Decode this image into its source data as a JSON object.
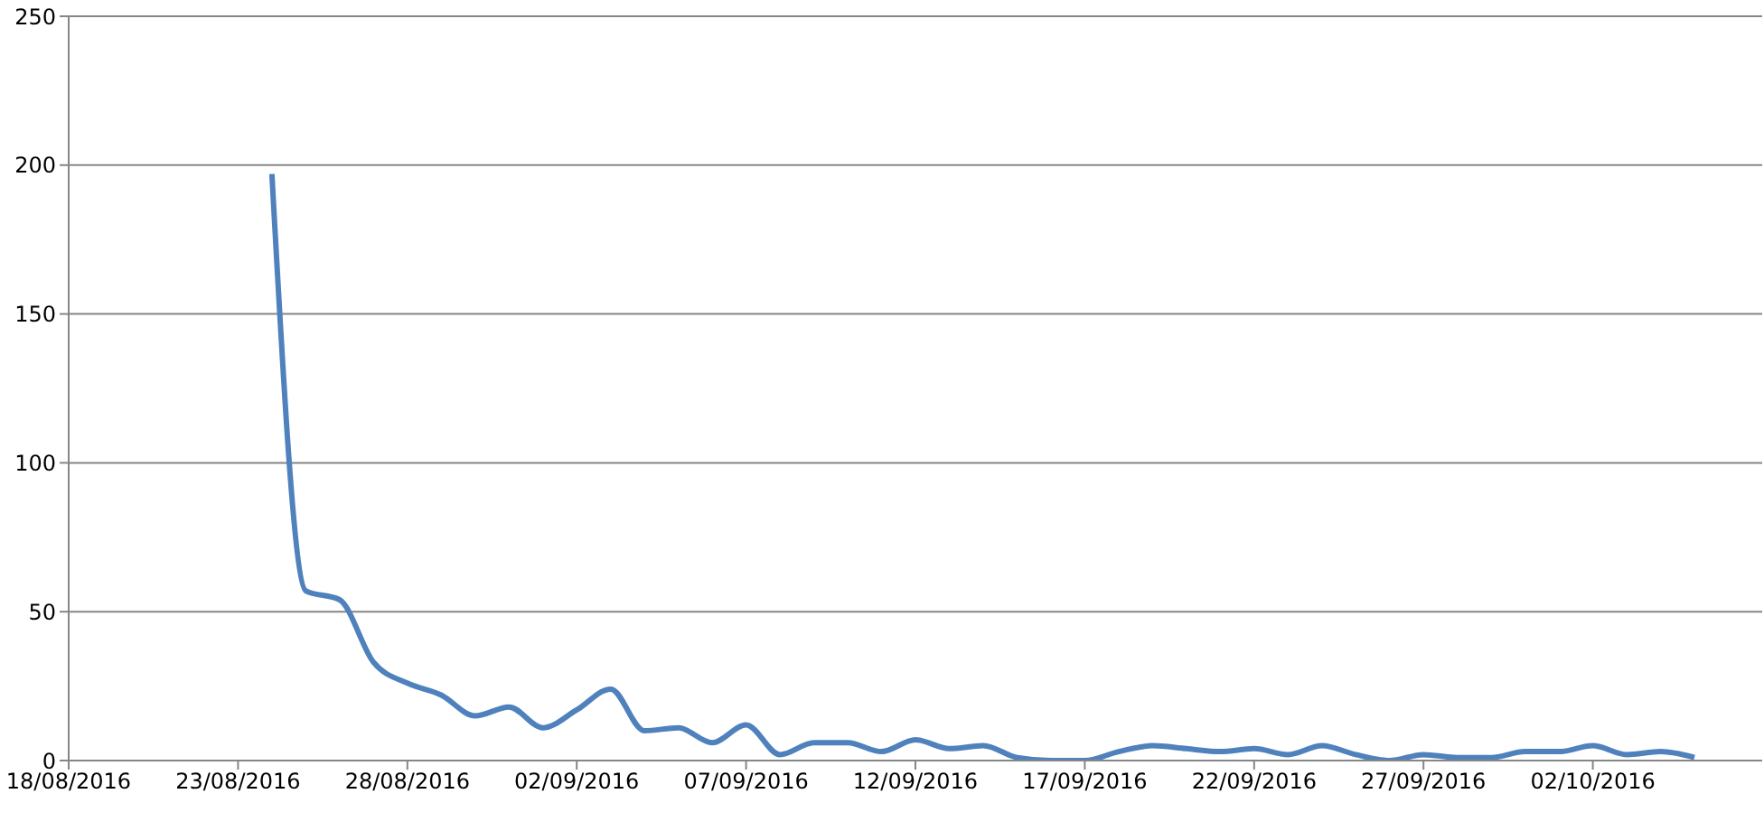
{
  "chart_data": {
    "type": "line",
    "x": [
      "2016-08-24",
      "2016-08-25",
      "2016-08-26",
      "2016-08-27",
      "2016-08-28",
      "2016-08-29",
      "2016-08-30",
      "2016-08-31",
      "2016-09-01",
      "2016-09-02",
      "2016-09-03",
      "2016-09-04",
      "2016-09-05",
      "2016-09-06",
      "2016-09-07",
      "2016-09-08",
      "2016-09-09",
      "2016-09-10",
      "2016-09-11",
      "2016-09-12",
      "2016-09-13",
      "2016-09-14",
      "2016-09-15",
      "2016-09-16",
      "2016-09-17",
      "2016-09-18",
      "2016-09-19",
      "2016-09-20",
      "2016-09-21",
      "2016-09-22",
      "2016-09-23",
      "2016-09-24",
      "2016-09-25",
      "2016-09-26",
      "2016-09-27",
      "2016-09-28",
      "2016-09-29",
      "2016-09-30",
      "2016-10-01",
      "2016-10-02",
      "2016-10-03",
      "2016-10-04",
      "2016-10-05"
    ],
    "series": [
      {
        "color": "#4f81bd",
        "values": [
          197,
          57,
          54,
          33,
          26,
          22,
          15,
          18,
          11,
          17,
          24,
          10,
          11,
          6,
          12,
          2,
          6,
          6,
          3,
          7,
          4,
          5,
          1,
          0,
          0,
          3,
          5,
          4,
          3,
          4,
          2,
          5,
          2,
          0,
          2,
          1,
          1,
          3,
          3,
          5,
          2,
          3,
          1
        ]
      }
    ],
    "xlim": [
      "2016-08-18",
      "2016-10-07"
    ],
    "xticks": [
      {
        "value": "2016-08-18",
        "label": "18/08/2016"
      },
      {
        "value": "2016-08-23",
        "label": "23/08/2016"
      },
      {
        "value": "2016-08-28",
        "label": "28/08/2016"
      },
      {
        "value": "2016-09-02",
        "label": "02/09/2016"
      },
      {
        "value": "2016-09-07",
        "label": "07/09/2016"
      },
      {
        "value": "2016-09-12",
        "label": "12/09/2016"
      },
      {
        "value": "2016-09-17",
        "label": "17/09/2016"
      },
      {
        "value": "2016-09-22",
        "label": "22/09/2016"
      },
      {
        "value": "2016-09-27",
        "label": "27/09/2016"
      },
      {
        "value": "2016-10-02",
        "label": "02/10/2016"
      }
    ],
    "ylim": [
      0,
      250
    ],
    "yticks": [
      0,
      50,
      100,
      150,
      200,
      250
    ],
    "grid": "y"
  }
}
